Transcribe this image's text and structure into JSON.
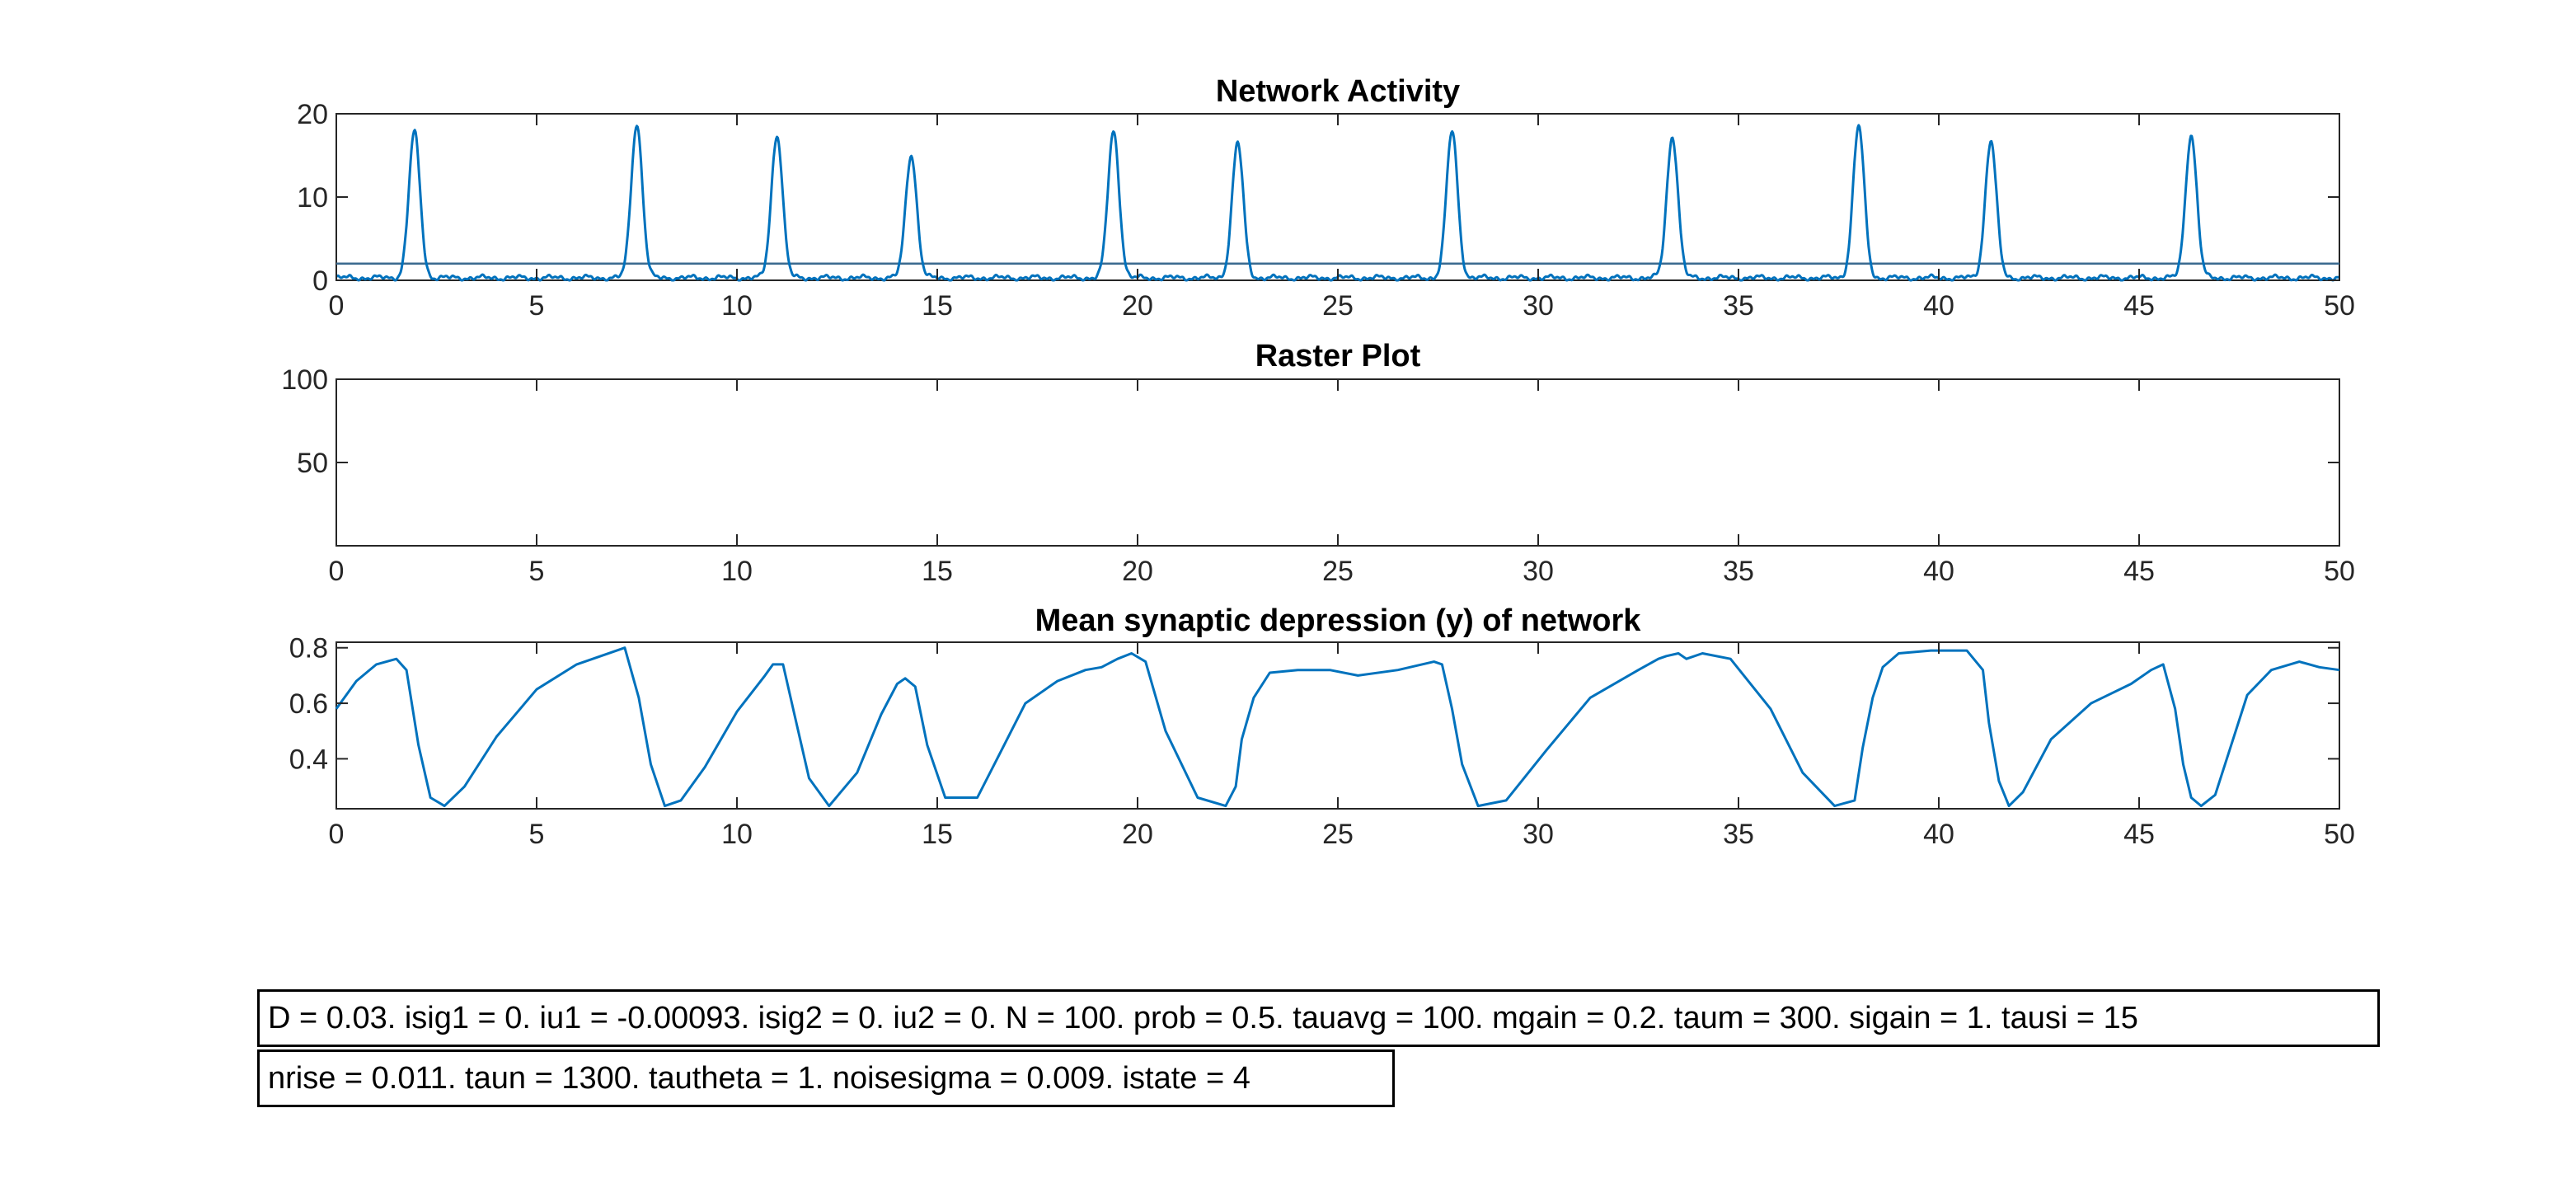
{
  "chart_data": [
    {
      "type": "line",
      "title": "Network Activity",
      "xlim": [
        0,
        50
      ],
      "ylim": [
        0,
        20
      ],
      "xticks": [
        0,
        5,
        10,
        15,
        20,
        25,
        30,
        35,
        40,
        45,
        50
      ],
      "yticks": [
        0,
        10,
        20
      ],
      "baseline_level": 0.3,
      "threshold": 2,
      "peaks": [
        {
          "t": 1.95,
          "height": 17.5
        },
        {
          "t": 7.5,
          "height": 18.5
        },
        {
          "t": 11.0,
          "height": 17.2
        },
        {
          "t": 14.35,
          "height": 14.8
        },
        {
          "t": 19.4,
          "height": 17.6
        },
        {
          "t": 22.5,
          "height": 16.2
        },
        {
          "t": 27.85,
          "height": 17.6
        },
        {
          "t": 33.35,
          "height": 17.0
        },
        {
          "t": 38.0,
          "height": 18.2
        },
        {
          "t": 41.3,
          "height": 16.5
        },
        {
          "t": 46.3,
          "height": 17.2
        }
      ],
      "series_color": "#0072BD"
    },
    {
      "type": "scatter",
      "title": "Raster Plot",
      "xlim": [
        0,
        50
      ],
      "ylim": [
        0,
        100
      ],
      "xticks": [
        0,
        5,
        10,
        15,
        20,
        25,
        30,
        35,
        40,
        45,
        50
      ],
      "yticks": [
        50,
        100
      ],
      "points": []
    },
    {
      "type": "line",
      "title": "Mean synaptic depression (y) of network",
      "xlim": [
        0,
        50
      ],
      "ylim": [
        0.22,
        0.82
      ],
      "xticks": [
        0,
        5,
        10,
        15,
        20,
        25,
        30,
        35,
        40,
        45,
        50
      ],
      "yticks": [
        0.4,
        0.6,
        0.8
      ],
      "x": [
        0,
        0.5,
        1.0,
        1.5,
        1.75,
        2.05,
        2.35,
        2.7,
        3.2,
        4.0,
        5.0,
        6.0,
        7.0,
        7.2,
        7.55,
        7.85,
        8.2,
        8.6,
        9.2,
        10.0,
        10.7,
        10.9,
        11.15,
        11.45,
        11.8,
        12.3,
        13.0,
        13.6,
        14.0,
        14.2,
        14.45,
        14.75,
        15.2,
        16.0,
        16.6,
        17.2,
        18.0,
        18.7,
        19.1,
        19.5,
        19.85,
        20.2,
        20.7,
        21.5,
        22.2,
        22.45,
        22.6,
        22.9,
        23.3,
        24.0,
        24.8,
        25.5,
        26.5,
        27.4,
        27.6,
        27.85,
        28.1,
        28.5,
        29.2,
        30.2,
        31.3,
        32.5,
        33.0,
        33.2,
        33.5,
        33.7,
        34.1,
        34.8,
        35.8,
        36.6,
        37.4,
        37.9,
        38.1,
        38.35,
        38.6,
        39.0,
        39.8,
        40.7,
        41.1,
        41.25,
        41.5,
        41.75,
        42.1,
        42.8,
        43.8,
        44.8,
        45.3,
        45.6,
        45.9,
        46.1,
        46.3,
        46.55,
        46.9,
        47.3,
        47.7,
        48.3,
        49.0,
        49.5,
        50.0
      ],
      "y": [
        0.58,
        0.68,
        0.74,
        0.76,
        0.72,
        0.45,
        0.26,
        0.23,
        0.3,
        0.48,
        0.65,
        0.74,
        0.79,
        0.8,
        0.62,
        0.38,
        0.23,
        0.25,
        0.37,
        0.57,
        0.7,
        0.74,
        0.74,
        0.55,
        0.33,
        0.23,
        0.35,
        0.56,
        0.67,
        0.69,
        0.66,
        0.45,
        0.26,
        0.26,
        0.43,
        0.6,
        0.68,
        0.72,
        0.73,
        0.76,
        0.78,
        0.75,
        0.5,
        0.26,
        0.23,
        0.3,
        0.47,
        0.62,
        0.71,
        0.72,
        0.72,
        0.7,
        0.72,
        0.75,
        0.74,
        0.58,
        0.38,
        0.23,
        0.25,
        0.43,
        0.62,
        0.72,
        0.76,
        0.77,
        0.78,
        0.76,
        0.78,
        0.76,
        0.58,
        0.35,
        0.23,
        0.25,
        0.44,
        0.62,
        0.73,
        0.78,
        0.79,
        0.79,
        0.72,
        0.53,
        0.32,
        0.23,
        0.28,
        0.47,
        0.6,
        0.67,
        0.72,
        0.74,
        0.58,
        0.38,
        0.26,
        0.23,
        0.27,
        0.45,
        0.63,
        0.72,
        0.75,
        0.73,
        0.72
      ],
      "series_color": "#0072BD"
    }
  ],
  "parameters": {
    "line1": "D = 0.03. isig1 = 0. iu1 = -0.00093. isig2 = 0. iu2 = 0. N = 100. prob = 0.5. tauavg = 100. mgain = 0.2. taum = 300. sigain = 1. tausi = 15",
    "line2": "nrise = 0.011. taun = 1300. tautheta = 1. noisesigma = 0.009. istate = 4"
  }
}
